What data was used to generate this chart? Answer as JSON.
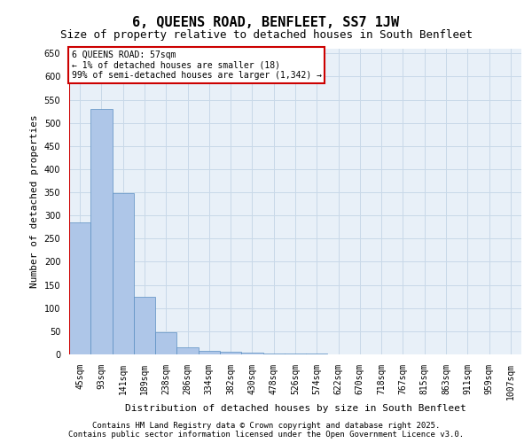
{
  "title": "6, QUEENS ROAD, BENFLEET, SS7 1JW",
  "subtitle": "Size of property relative to detached houses in South Benfleet",
  "xlabel": "Distribution of detached houses by size in South Benfleet",
  "ylabel": "Number of detached properties",
  "categories": [
    "45sqm",
    "93sqm",
    "141sqm",
    "189sqm",
    "238sqm",
    "286sqm",
    "334sqm",
    "382sqm",
    "430sqm",
    "478sqm",
    "526sqm",
    "574sqm",
    "622sqm",
    "670sqm",
    "718sqm",
    "767sqm",
    "815sqm",
    "863sqm",
    "911sqm",
    "959sqm",
    "1007sqm"
  ],
  "values": [
    285,
    530,
    348,
    125,
    48,
    15,
    8,
    5,
    3,
    2,
    1,
    1,
    0,
    0,
    0,
    0,
    0,
    0,
    0,
    0,
    0
  ],
  "bar_color": "#aec6e8",
  "bar_edge_color": "#5a8fc2",
  "annotation_box_color": "#cc0000",
  "annotation_text": "6 QUEENS ROAD: 57sqm\n← 1% of detached houses are smaller (18)\n99% of semi-detached houses are larger (1,342) →",
  "ylim": [
    0,
    660
  ],
  "yticks": [
    0,
    50,
    100,
    150,
    200,
    250,
    300,
    350,
    400,
    450,
    500,
    550,
    600,
    650
  ],
  "grid_color": "#c8d8e8",
  "background_color": "#e8f0f8",
  "footer": "Contains HM Land Registry data © Crown copyright and database right 2025.\nContains public sector information licensed under the Open Government Licence v3.0.",
  "title_fontsize": 11,
  "subtitle_fontsize": 9,
  "label_fontsize": 8,
  "tick_fontsize": 7,
  "footer_fontsize": 6.5
}
